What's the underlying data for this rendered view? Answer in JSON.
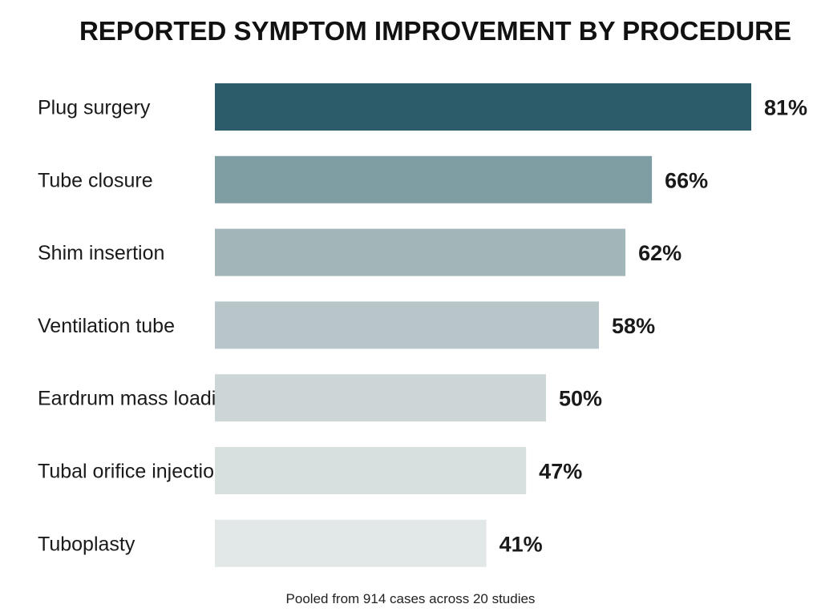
{
  "chart_data": {
    "type": "bar",
    "orientation": "horizontal",
    "title": "REPORTED SYMPTOM IMPROVEMENT BY PROCEDURE",
    "categories": [
      "Plug surgery",
      "Tube closure",
      "Shim insertion",
      "Ventilation tube",
      "Eardrum mass loading",
      "Tubal orifice injection",
      "Tuboplasty"
    ],
    "values": [
      81,
      66,
      62,
      58,
      50,
      47,
      41
    ],
    "value_labels": [
      "81%",
      "66%",
      "62%",
      "58%",
      "50%",
      "47%",
      "41%"
    ],
    "unit": "%",
    "xlim": [
      0,
      100
    ],
    "grid": false,
    "legend": "none",
    "bar_colors": [
      "#2c5c69",
      "#7f9ea4",
      "#a2b5b9",
      "#b8c6c9",
      "#ccd6d6",
      "#d7dfdf",
      "#e2e8e8"
    ],
    "note": "Pooled from 914 cases across 20 studies"
  }
}
